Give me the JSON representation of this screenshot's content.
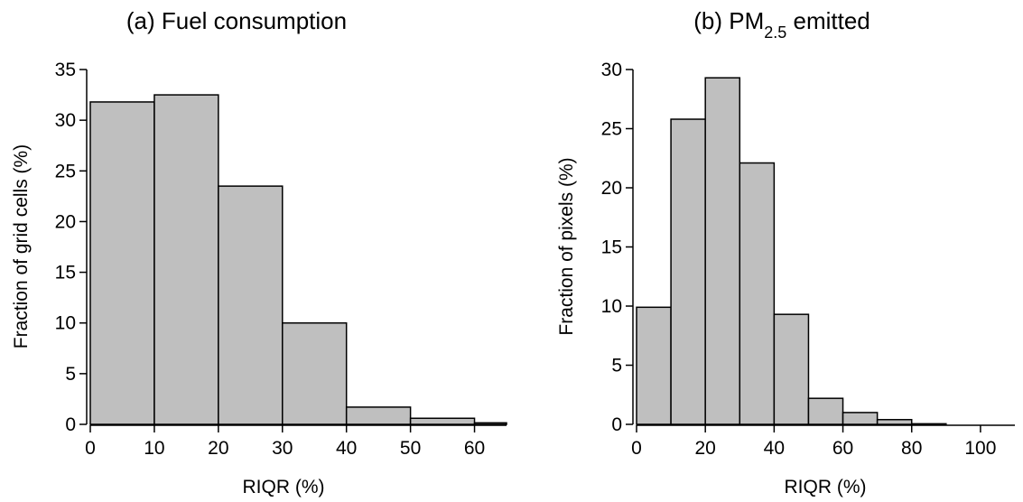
{
  "chart_data": [
    {
      "type": "bar",
      "title": "(a) Fuel consumption",
      "title_sub": "",
      "title_suffix": "",
      "xlabel": "RIQR (%)",
      "ylabel": "Fraction of grid cells (%)",
      "bin_edges": [
        0,
        10,
        20,
        30,
        40,
        50,
        60,
        70
      ],
      "values": [
        31.8,
        32.5,
        23.5,
        10.0,
        1.7,
        0.6,
        0.15
      ],
      "xlim": [
        0,
        65
      ],
      "ylim": [
        0,
        35
      ],
      "xticks": [
        0,
        10,
        20,
        30,
        40,
        50,
        60
      ],
      "yticks": [
        0,
        5,
        10,
        15,
        20,
        25,
        30,
        35
      ],
      "grid": false,
      "bar_color": "#bfbfbf"
    },
    {
      "type": "bar",
      "title": "(b) PM",
      "title_sub": "2.5",
      "title_suffix": " emitted",
      "xlabel": "RIQR (%)",
      "ylabel": "Fraction of pixels (%)",
      "bin_edges": [
        0,
        10,
        20,
        30,
        40,
        50,
        60,
        70,
        80,
        90,
        100,
        110
      ],
      "values": [
        9.9,
        25.8,
        29.3,
        22.1,
        9.3,
        2.2,
        1.0,
        0.4,
        0.05,
        0.0,
        0.0
      ],
      "xlim": [
        0,
        110
      ],
      "ylim": [
        0,
        30
      ],
      "xticks": [
        0,
        20,
        40,
        60,
        80,
        100
      ],
      "yticks": [
        0,
        5,
        10,
        15,
        20,
        25,
        30
      ],
      "grid": false,
      "bar_color": "#bfbfbf"
    }
  ]
}
